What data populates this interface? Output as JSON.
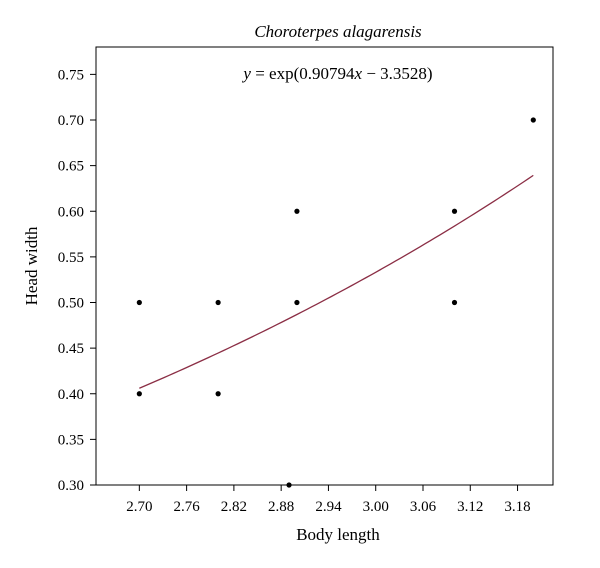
{
  "chart_data": {
    "type": "scatter",
    "title": "Choroterpes alagarensis",
    "annotation": {
      "italic_y": "y",
      "prefix": " = exp(0.90794",
      "italic_x": "x",
      "suffix": " − 3.3528)"
    },
    "xlabel": "Body length",
    "ylabel": "Head width",
    "xlim": [
      2.645,
      3.225
    ],
    "ylim": [
      0.3,
      0.78
    ],
    "xticks": [
      2.7,
      2.76,
      2.82,
      2.88,
      2.94,
      3.0,
      3.06,
      3.12,
      3.18
    ],
    "xtick_labels": [
      "2.70",
      "2.76",
      "2.82",
      "2.88",
      "2.94",
      "3.00",
      "3.06",
      "3.12",
      "3.18"
    ],
    "yticks": [
      0.3,
      0.35,
      0.4,
      0.45,
      0.5,
      0.55,
      0.6,
      0.65,
      0.7,
      0.75
    ],
    "ytick_labels": [
      "0.30",
      "0.35",
      "0.40",
      "0.45",
      "0.50",
      "0.55",
      "0.60",
      "0.65",
      "0.70",
      "0.75"
    ],
    "grid": false,
    "points": [
      {
        "x": 2.7,
        "y": 0.5
      },
      {
        "x": 2.7,
        "y": 0.4
      },
      {
        "x": 2.8,
        "y": 0.5
      },
      {
        "x": 2.8,
        "y": 0.4
      },
      {
        "x": 2.89,
        "y": 0.3
      },
      {
        "x": 2.9,
        "y": 0.6
      },
      {
        "x": 2.9,
        "y": 0.5
      },
      {
        "x": 3.1,
        "y": 0.6
      },
      {
        "x": 3.1,
        "y": 0.5
      },
      {
        "x": 3.2,
        "y": 0.7
      }
    ],
    "fit": {
      "a": 0.90794,
      "b": -3.3528,
      "x_range": [
        2.7,
        3.2
      ],
      "color": "#8b2e45"
    },
    "point_color": "#000000"
  }
}
